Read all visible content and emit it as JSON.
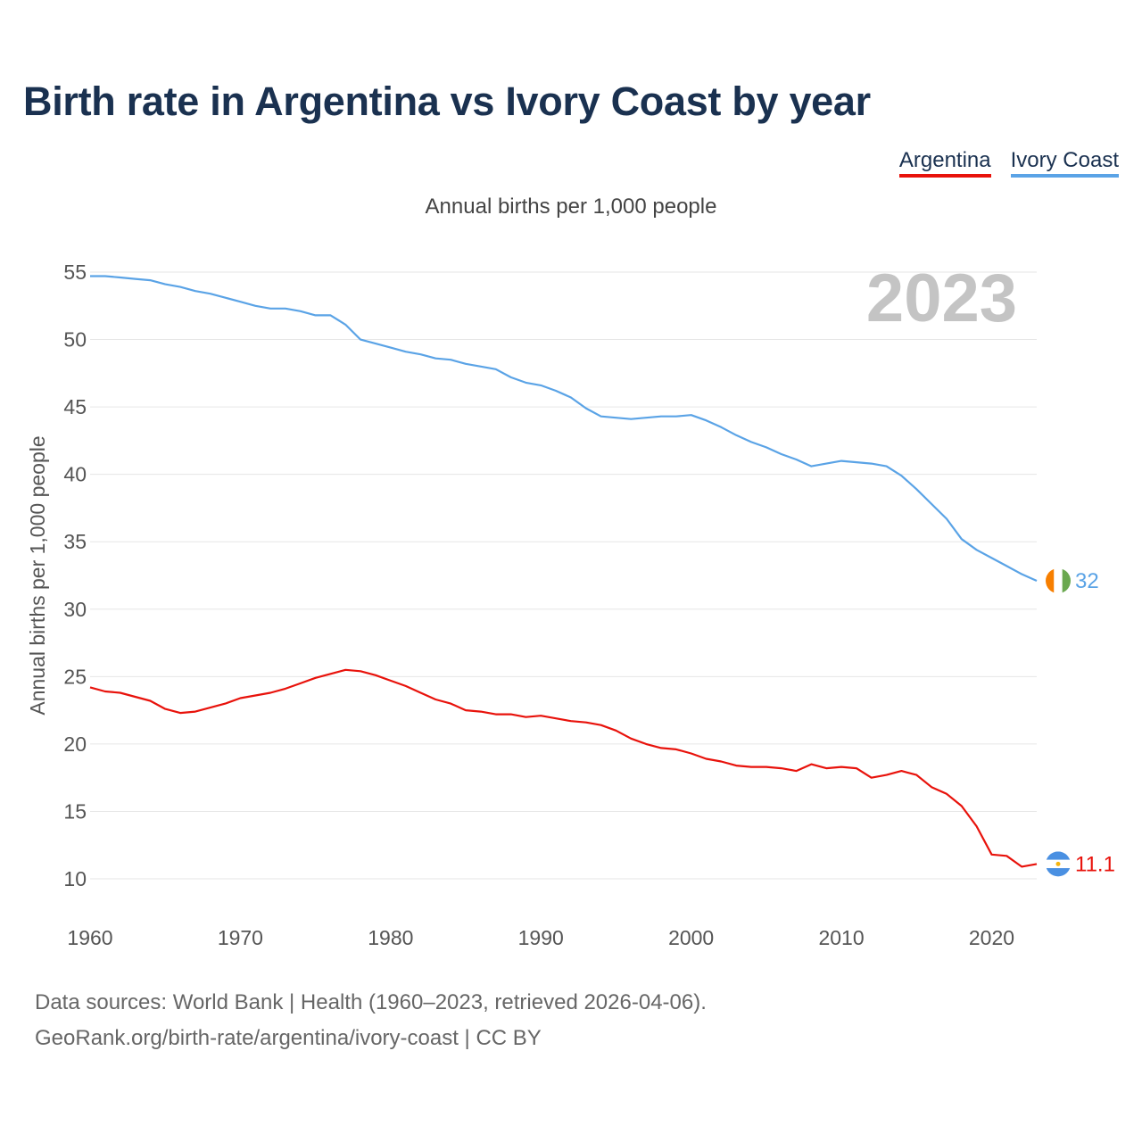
{
  "title": "Birth rate in Argentina vs Ivory Coast by year",
  "legend": [
    {
      "label": "Argentina",
      "color": "#e8120b"
    },
    {
      "label": "Ivory Coast",
      "color": "#5aa3e6"
    }
  ],
  "subtitle": "Annual births per 1,000 people",
  "footer": {
    "source": "Data sources: World Bank | Health (1960–2023, retrieved 2026-04-06).",
    "url": "GeoRank.org/birth-rate/argentina/ivory-coast | CC BY"
  },
  "chart_data": {
    "type": "line",
    "title": "Birth rate in Argentina vs Ivory Coast by year",
    "ylabel": "Annual births per 1,000 people",
    "xlabel": "",
    "year_label": "2023",
    "xlim": [
      1960,
      2023
    ],
    "ylim": [
      10,
      55
    ],
    "x_ticks": [
      1960,
      1970,
      1980,
      1990,
      2000,
      2010,
      2020
    ],
    "y_ticks": [
      10,
      15,
      20,
      25,
      30,
      35,
      40,
      45,
      50,
      55
    ],
    "grid": true,
    "x": [
      1960,
      1961,
      1962,
      1963,
      1964,
      1965,
      1966,
      1967,
      1968,
      1969,
      1970,
      1971,
      1972,
      1973,
      1974,
      1975,
      1976,
      1977,
      1978,
      1979,
      1980,
      1981,
      1982,
      1983,
      1984,
      1985,
      1986,
      1987,
      1988,
      1989,
      1990,
      1991,
      1992,
      1993,
      1994,
      1995,
      1996,
      1997,
      1998,
      1999,
      2000,
      2001,
      2002,
      2003,
      2004,
      2005,
      2006,
      2007,
      2008,
      2009,
      2010,
      2011,
      2012,
      2013,
      2014,
      2015,
      2016,
      2017,
      2018,
      2019,
      2020,
      2021,
      2022,
      2023
    ],
    "series": [
      {
        "name": "Argentina",
        "color": "#e8120b",
        "end_label": "11.1",
        "flag": "argentina-flag",
        "values": [
          24.2,
          23.9,
          23.8,
          23.5,
          23.2,
          22.6,
          22.3,
          22.4,
          22.7,
          23.0,
          23.4,
          23.6,
          23.8,
          24.1,
          24.5,
          24.9,
          25.2,
          25.5,
          25.4,
          25.1,
          24.7,
          24.3,
          23.8,
          23.3,
          23.0,
          22.5,
          22.4,
          22.2,
          22.2,
          22.0,
          22.1,
          21.9,
          21.7,
          21.6,
          21.4,
          21.0,
          20.4,
          20.0,
          19.7,
          19.6,
          19.3,
          18.9,
          18.7,
          18.4,
          18.3,
          18.3,
          18.2,
          18.0,
          18.5,
          18.2,
          18.3,
          18.2,
          17.5,
          17.7,
          18.0,
          17.7,
          16.8,
          16.3,
          15.4,
          13.9,
          11.8,
          11.7,
          10.9,
          11.1
        ]
      },
      {
        "name": "Ivory Coast",
        "color": "#5aa3e6",
        "end_label": "32",
        "flag": "ivory-coast-flag",
        "values": [
          54.7,
          54.7,
          54.6,
          54.5,
          54.4,
          54.1,
          53.9,
          53.6,
          53.4,
          53.1,
          52.8,
          52.5,
          52.3,
          52.3,
          52.1,
          51.8,
          51.8,
          51.1,
          50.0,
          49.7,
          49.4,
          49.1,
          48.9,
          48.6,
          48.5,
          48.2,
          48.0,
          47.8,
          47.2,
          46.8,
          46.6,
          46.2,
          45.7,
          44.9,
          44.3,
          44.2,
          44.1,
          44.2,
          44.3,
          44.3,
          44.4,
          44.0,
          43.5,
          42.9,
          42.4,
          42.0,
          41.5,
          41.1,
          40.6,
          40.8,
          41.0,
          40.9,
          40.8,
          40.6,
          39.9,
          38.9,
          37.8,
          36.7,
          35.2,
          34.4,
          33.8,
          33.2,
          32.6,
          32.1
        ]
      }
    ]
  }
}
